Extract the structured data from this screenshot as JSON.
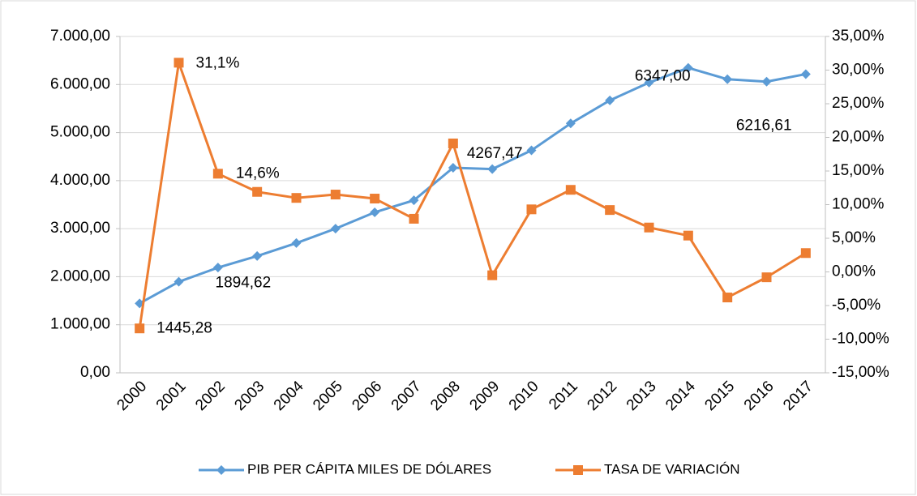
{
  "chart_data": {
    "type": "line",
    "categories": [
      "2000",
      "2001",
      "2002",
      "2003",
      "2004",
      "2005",
      "2006",
      "2007",
      "2008",
      "2009",
      "2010",
      "2011",
      "2012",
      "2013",
      "2014",
      "2015",
      "2016",
      "2017"
    ],
    "series": [
      {
        "name": "PIB PER CÁPITA MILES DE DÓLARES",
        "color": "#5b9bd5",
        "marker": "diamond",
        "values": [
          1445.28,
          1894.62,
          2190,
          2430,
          2700,
          3000,
          3340,
          3590,
          4267.47,
          4240,
          4630,
          5190,
          5670,
          6040,
          6347,
          6110,
          6060,
          6216.61
        ],
        "value_labels": [
          "1445,28",
          "1894,62",
          null,
          null,
          null,
          null,
          null,
          null,
          "4267,47",
          null,
          null,
          null,
          null,
          null,
          "6347,00",
          null,
          null,
          "6216,61"
        ]
      },
      {
        "name": "TASA DE VARIACIÓN",
        "color": "#ed7d31",
        "marker": "square",
        "axis": "y2",
        "values": [
          -8.4,
          31.1,
          14.6,
          11.9,
          11.0,
          11.5,
          10.9,
          7.9,
          19.1,
          -0.5,
          9.3,
          12.2,
          9.2,
          6.6,
          5.4,
          -3.8,
          -0.8,
          2.8
        ],
        "value_labels": [
          null,
          "31,1%",
          "14,6%",
          null,
          null,
          null,
          null,
          null,
          null,
          null,
          null,
          null,
          null,
          null,
          null,
          null,
          null,
          null
        ]
      }
    ],
    "ylim": [
      0,
      7000
    ],
    "yticks": [
      {
        "value": 0,
        "label": "0,00"
      },
      {
        "value": 1000,
        "label": "1.000,00"
      },
      {
        "value": 2000,
        "label": "2.000,00"
      },
      {
        "value": 3000,
        "label": "3.000,00"
      },
      {
        "value": 4000,
        "label": "4.000,00"
      },
      {
        "value": 5000,
        "label": "5.000,00"
      },
      {
        "value": 6000,
        "label": "6.000,00"
      },
      {
        "value": 7000,
        "label": "7.000,00"
      }
    ],
    "y2lim": [
      -15,
      35
    ],
    "y2ticks": [
      {
        "value": -15,
        "label": "-15,00%"
      },
      {
        "value": -10,
        "label": "-10,00%"
      },
      {
        "value": -5,
        "label": "-5,00%"
      },
      {
        "value": 0,
        "label": "0,00%"
      },
      {
        "value": 5,
        "label": "5,00%"
      },
      {
        "value": 10,
        "label": "10,00%"
      },
      {
        "value": 15,
        "label": "15,00%"
      },
      {
        "value": 20,
        "label": "20,00%"
      },
      {
        "value": 25,
        "label": "25,00%"
      },
      {
        "value": 30,
        "label": "30,00%"
      },
      {
        "value": 35,
        "label": "35,00%"
      }
    ],
    "grid": true,
    "legend": "bottom"
  }
}
